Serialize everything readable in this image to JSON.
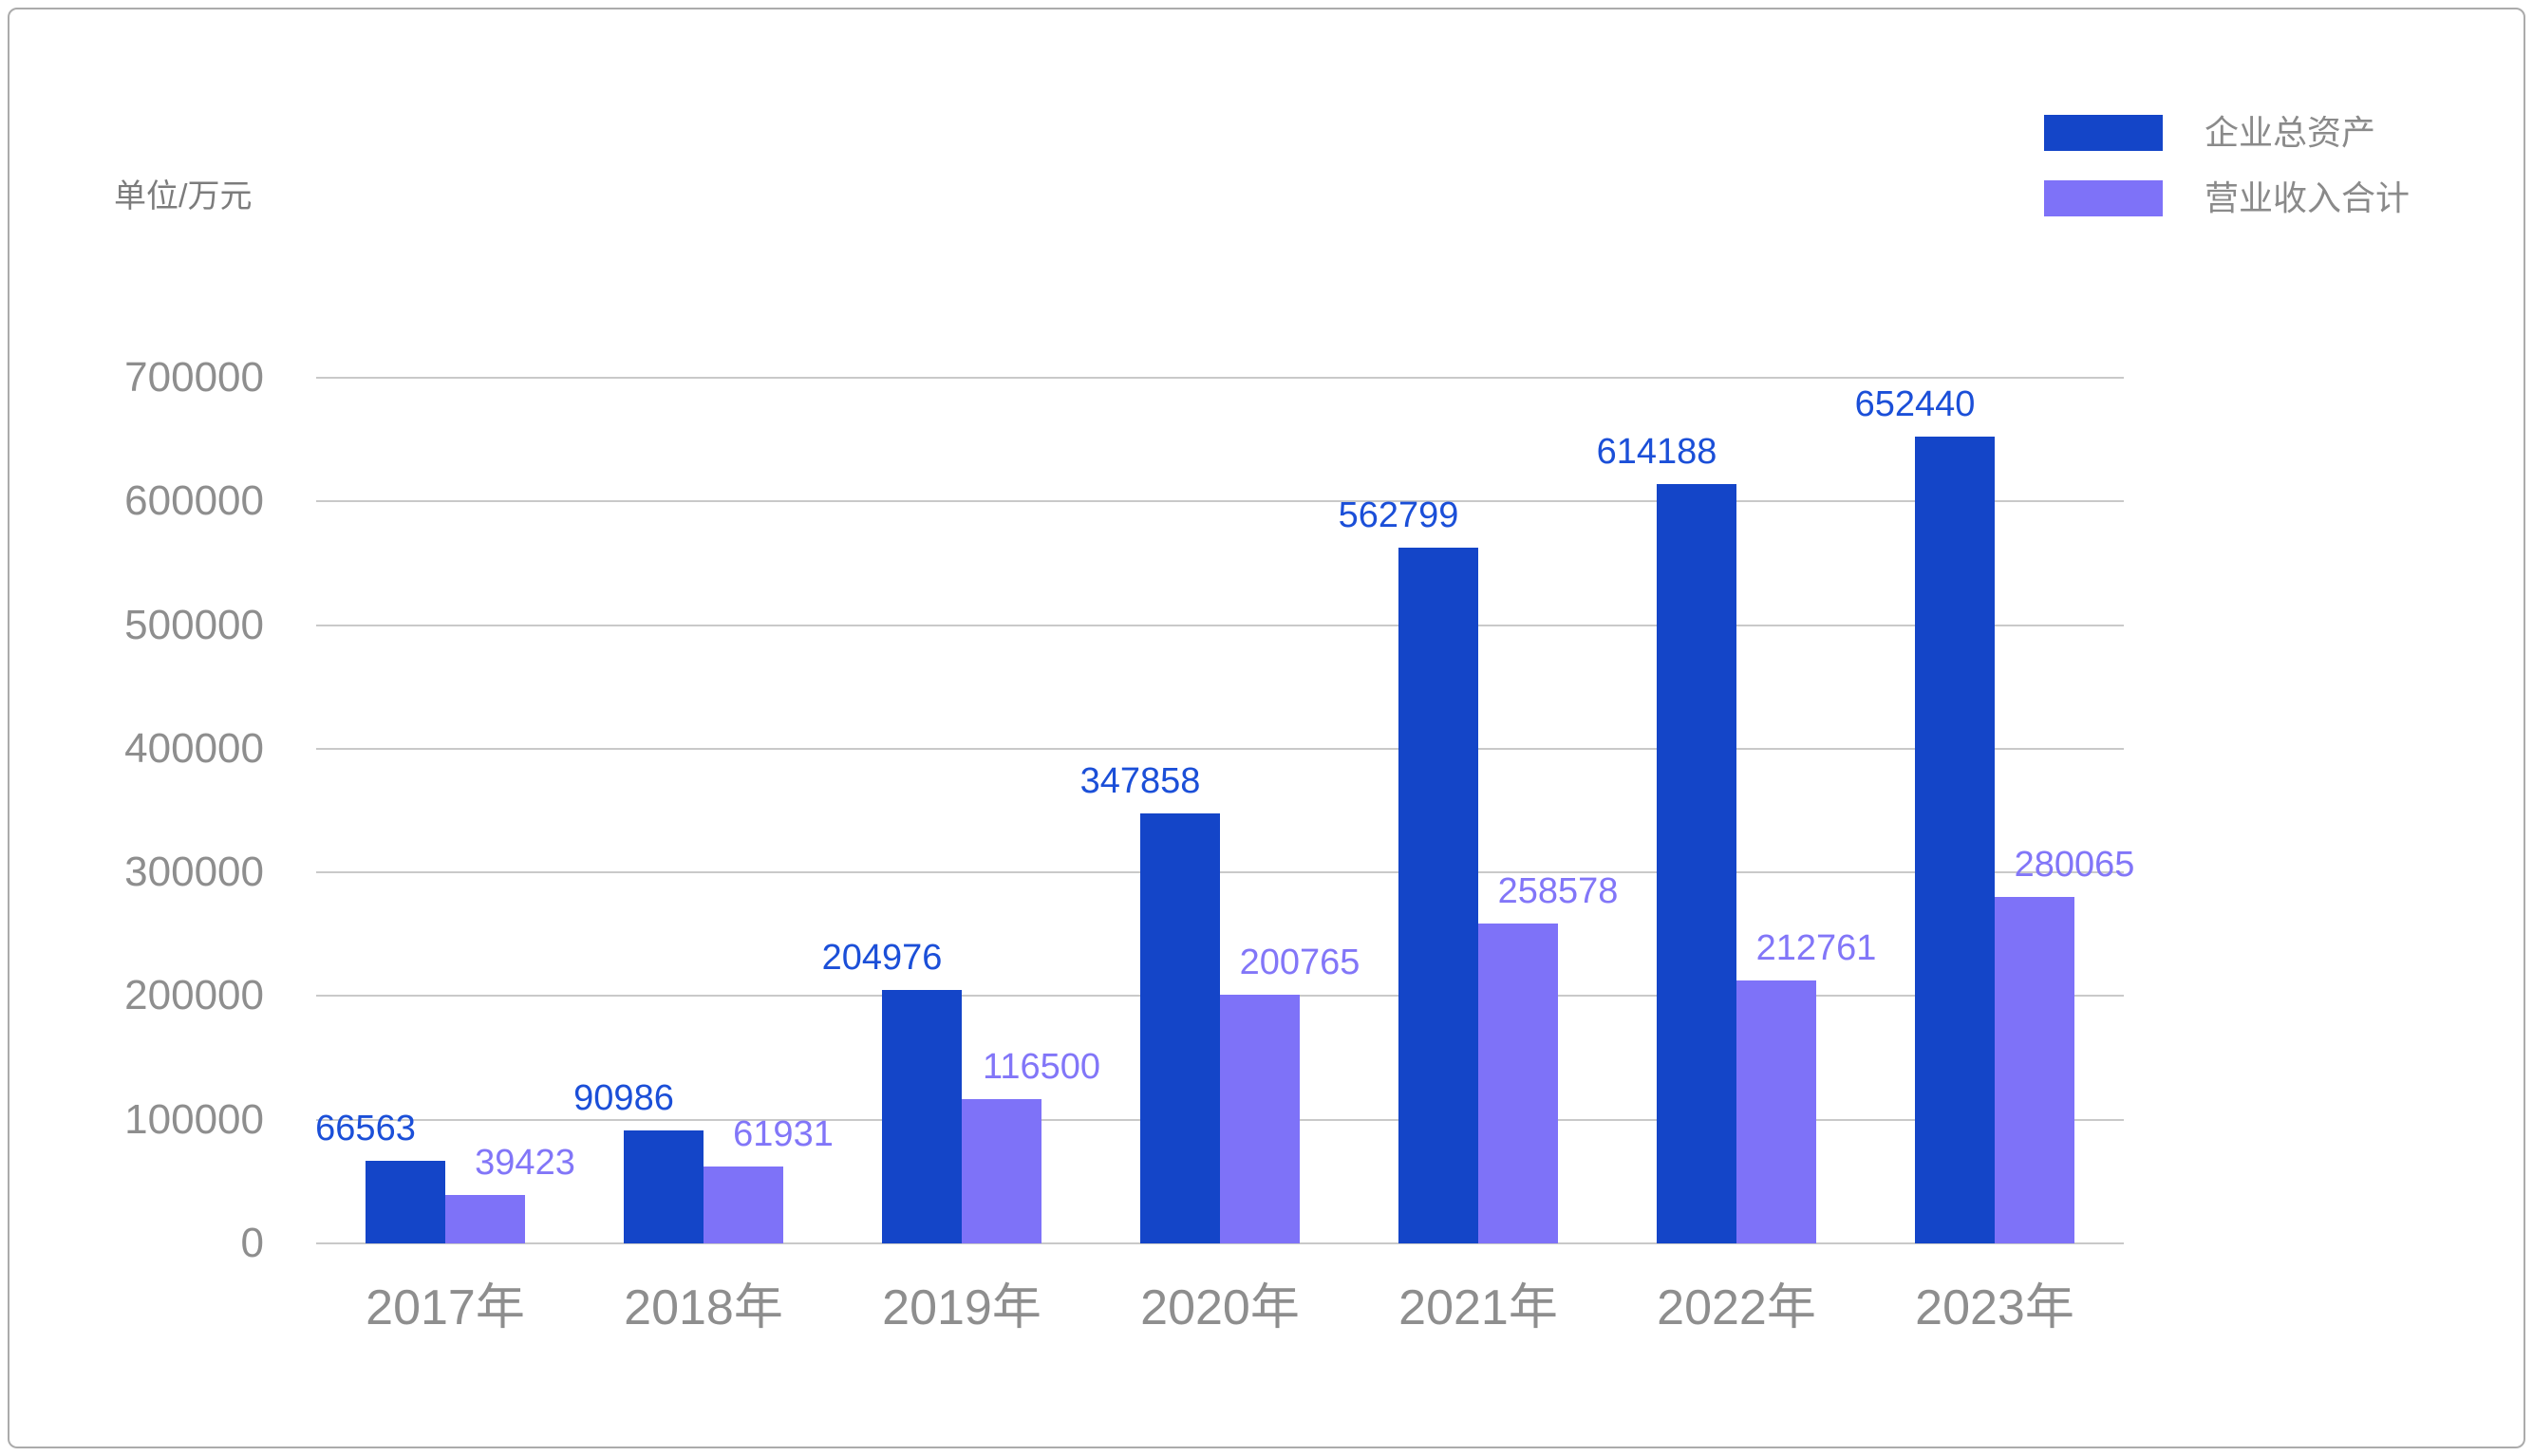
{
  "page": {
    "unit_label": "单位/万元"
  },
  "legend": {
    "position": "top-right",
    "items": [
      {
        "id": "assets",
        "label": "企业总资产",
        "color": "#1445c8"
      },
      {
        "id": "revenue",
        "label": "营业收入合计",
        "color": "#7e72f8"
      }
    ]
  },
  "chart_data": {
    "type": "bar",
    "title": "",
    "unit_label": "单位/万元",
    "categories": [
      "2017年",
      "2018年",
      "2019年",
      "2020年",
      "2021年",
      "2022年",
      "2023年"
    ],
    "series": [
      {
        "id": "assets",
        "name": "企业总资产",
        "color": "#1445c8",
        "label_color": "#1b4fd8",
        "values": [
          66563,
          90986,
          204976,
          347858,
          562799,
          614188,
          652440
        ]
      },
      {
        "id": "revenue",
        "name": "营业收入合计",
        "color": "#7e72f8",
        "label_color": "#8276f8",
        "values": [
          39423,
          61931,
          116500,
          200765,
          258578,
          212761,
          280065
        ]
      }
    ],
    "ylim": [
      0,
      700000
    ],
    "ytick_step": 100000,
    "yticks": [
      0,
      100000,
      200000,
      300000,
      400000,
      500000,
      600000,
      700000
    ],
    "grid": true,
    "grid_color": "#c9c9c9",
    "axis_label_color": "#8e8e8e",
    "legend_position": "top-right",
    "value_labels_shown": true
  }
}
